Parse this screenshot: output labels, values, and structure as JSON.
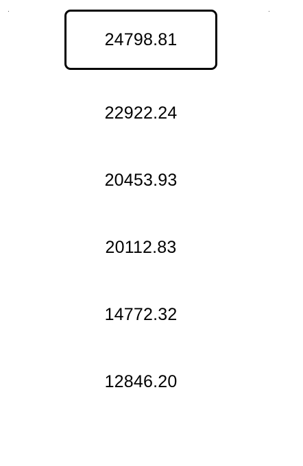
{
  "picker": {
    "items": [
      {
        "label": "24798.81",
        "selected": true
      },
      {
        "label": "22922.24",
        "selected": false
      },
      {
        "label": "20453.93",
        "selected": false
      },
      {
        "label": "20112.83",
        "selected": false
      },
      {
        "label": "14772.32",
        "selected": false
      },
      {
        "label": "12846.20",
        "selected": false
      }
    ]
  },
  "colors": {
    "background": "#ffffff",
    "text": "#000000",
    "selection_border": "#000000"
  }
}
